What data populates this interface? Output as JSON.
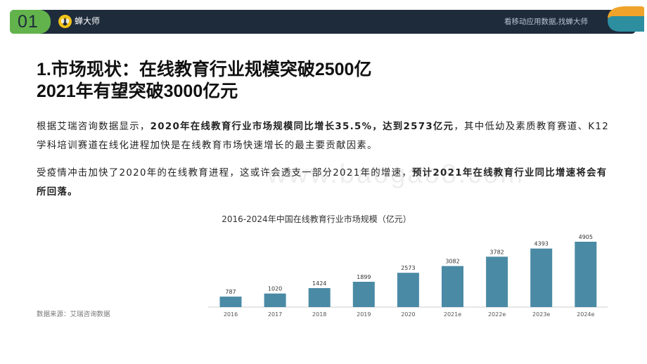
{
  "header": {
    "section_number": "01",
    "brand_name": "蝉大师",
    "slogan": "看移动应用数据,找蝉大师",
    "colors": {
      "bar": "#1e2b3b",
      "accent_green": "#63b34c",
      "logo_yellow": "#f3c316",
      "deco_orange": "#f0a32a",
      "deco_teal": "#2d8ea0"
    }
  },
  "title": {
    "line1": "1.市场现状：在线教育行业规模突破2500亿",
    "line2": "2021年有望突破3000亿元"
  },
  "paragraph1": {
    "seg1": "根据艾瑞咨询数据显示，",
    "seg2_bold": "2020年在线教育行业市场规模同比增长35.5%，达到2573亿元",
    "seg3": "，其中低幼及素质教育赛道、K12学科培训赛道在线化进程加快是在线教育市场快速增长的最主要贡献因素。"
  },
  "paragraph2": {
    "seg1": "受疫情冲击加快了2020年的在线教育进程，这或许会透支一部分2021年的增速，",
    "seg2_bold": "预计2021年在线教育行业同比增速将会有所回落。"
  },
  "watermark": "www.baogao8.com",
  "chart_data": {
    "type": "bar",
    "title": "2016-2024年中国在线教育行业市场规模（亿元）",
    "categories": [
      "2016",
      "2017",
      "2018",
      "2019",
      "2020",
      "2021e",
      "2022e",
      "2023e",
      "2024e"
    ],
    "values": [
      787,
      1020,
      1424,
      1899,
      2573,
      3082,
      3782,
      4393,
      4905
    ],
    "xlabel": "",
    "ylabel": "",
    "ylim": [
      0,
      5000
    ],
    "bar_color": "#4a8aa5",
    "grid": false
  },
  "source": "数据来源：艾瑞咨询数据"
}
